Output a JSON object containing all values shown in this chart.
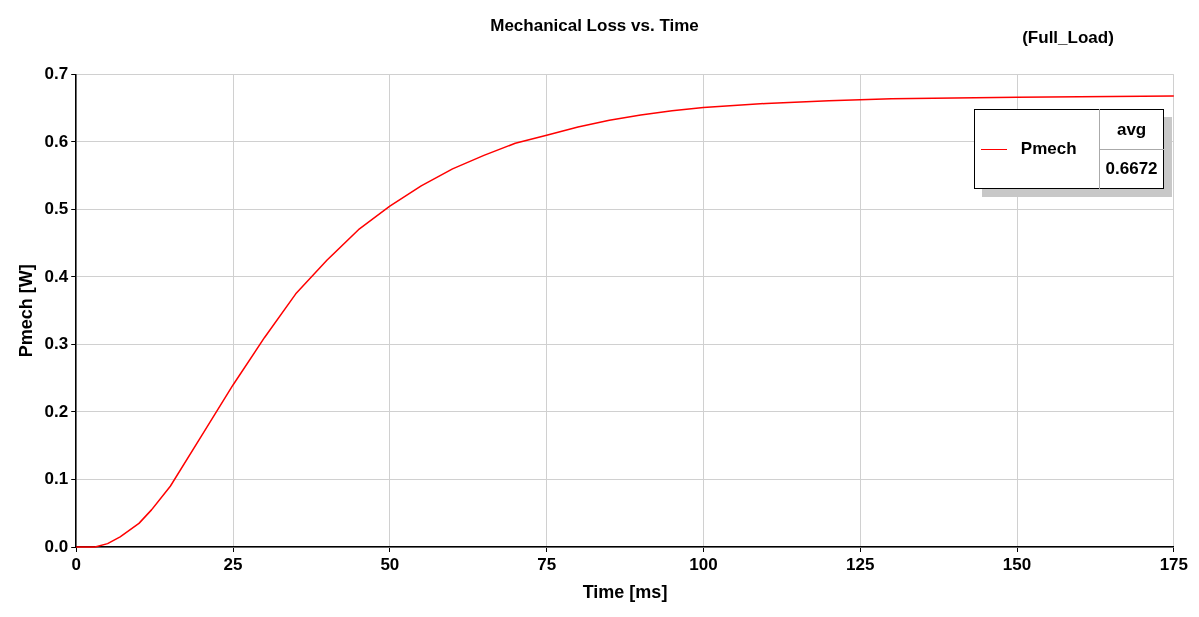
{
  "chart_data": {
    "type": "line",
    "title": "Mechanical Loss vs. Time",
    "subtitle": "(Full_Load)",
    "xlabel": "Time [ms]",
    "ylabel": "Pmech [W]",
    "x": [
      0,
      3,
      5,
      7,
      10,
      12,
      15,
      20,
      25,
      30,
      35,
      40,
      45,
      50,
      55,
      60,
      65,
      70,
      75,
      80,
      85,
      90,
      95,
      100,
      110,
      120,
      130,
      140,
      150,
      160,
      175
    ],
    "series": [
      {
        "name": "Pmech",
        "color": "#ff0000",
        "values": [
          0,
          0,
          0.005,
          0.015,
          0.035,
          0.055,
          0.09,
          0.165,
          0.24,
          0.31,
          0.375,
          0.425,
          0.47,
          0.505,
          0.535,
          0.56,
          0.58,
          0.598,
          0.61,
          0.622,
          0.632,
          0.64,
          0.646,
          0.651,
          0.657,
          0.661,
          0.664,
          0.665,
          0.666,
          0.667,
          0.668
        ]
      }
    ],
    "xlim": [
      0,
      175
    ],
    "xticks": [
      0,
      25,
      50,
      75,
      100,
      125,
      150,
      175
    ],
    "ylim": [
      0,
      0.7
    ],
    "yticks": [
      {
        "value": 0,
        "label": "0.0"
      },
      0.1,
      0.2,
      0.3,
      0.4,
      0.5,
      0.6,
      0.7
    ],
    "annotations": [
      "avg",
      "0.6672"
    ],
    "grid": true,
    "legend": "top right",
    "marker": "none",
    "line_style": "solid"
  }
}
